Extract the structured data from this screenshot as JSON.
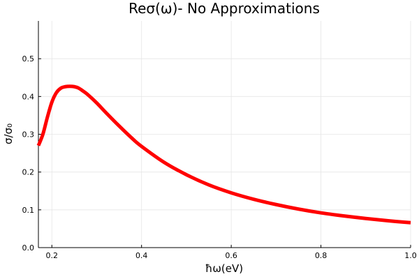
{
  "chart_data": {
    "type": "line",
    "title": "Reσ(ω)- No Approximations",
    "xlabel": "ħω(eV)",
    "ylabel": "σ/σ₀",
    "xlim": [
      0.17,
      1.0
    ],
    "ylim": [
      0.0,
      0.6
    ],
    "xticks": [
      0.2,
      0.4,
      0.6,
      0.8,
      1.0
    ],
    "xtick_labels": [
      "0.2",
      "0.4",
      "0.6",
      "0.8",
      "1.0"
    ],
    "yticks": [
      0.0,
      0.1,
      0.2,
      0.3,
      0.4,
      0.5
    ],
    "ytick_labels": [
      "0.0",
      "0.1",
      "0.2",
      "0.3",
      "0.4",
      "0.5"
    ],
    "grid": true,
    "legend": "none",
    "series": [
      {
        "color": "#ff0000",
        "x": [
          0.17,
          0.18,
          0.19,
          0.2,
          0.21,
          0.22,
          0.23,
          0.24,
          0.25,
          0.26,
          0.27,
          0.28,
          0.3,
          0.32,
          0.35,
          0.38,
          0.4,
          0.45,
          0.5,
          0.55,
          0.6,
          0.65,
          0.7,
          0.75,
          0.8,
          0.85,
          0.9,
          0.95,
          1.0
        ],
        "y": [
          0.27,
          0.3,
          0.345,
          0.385,
          0.41,
          0.422,
          0.426,
          0.427,
          0.426,
          0.422,
          0.414,
          0.405,
          0.383,
          0.358,
          0.322,
          0.288,
          0.268,
          0.226,
          0.193,
          0.166,
          0.145,
          0.128,
          0.114,
          0.102,
          0.092,
          0.084,
          0.077,
          0.071,
          0.066
        ]
      }
    ]
  }
}
